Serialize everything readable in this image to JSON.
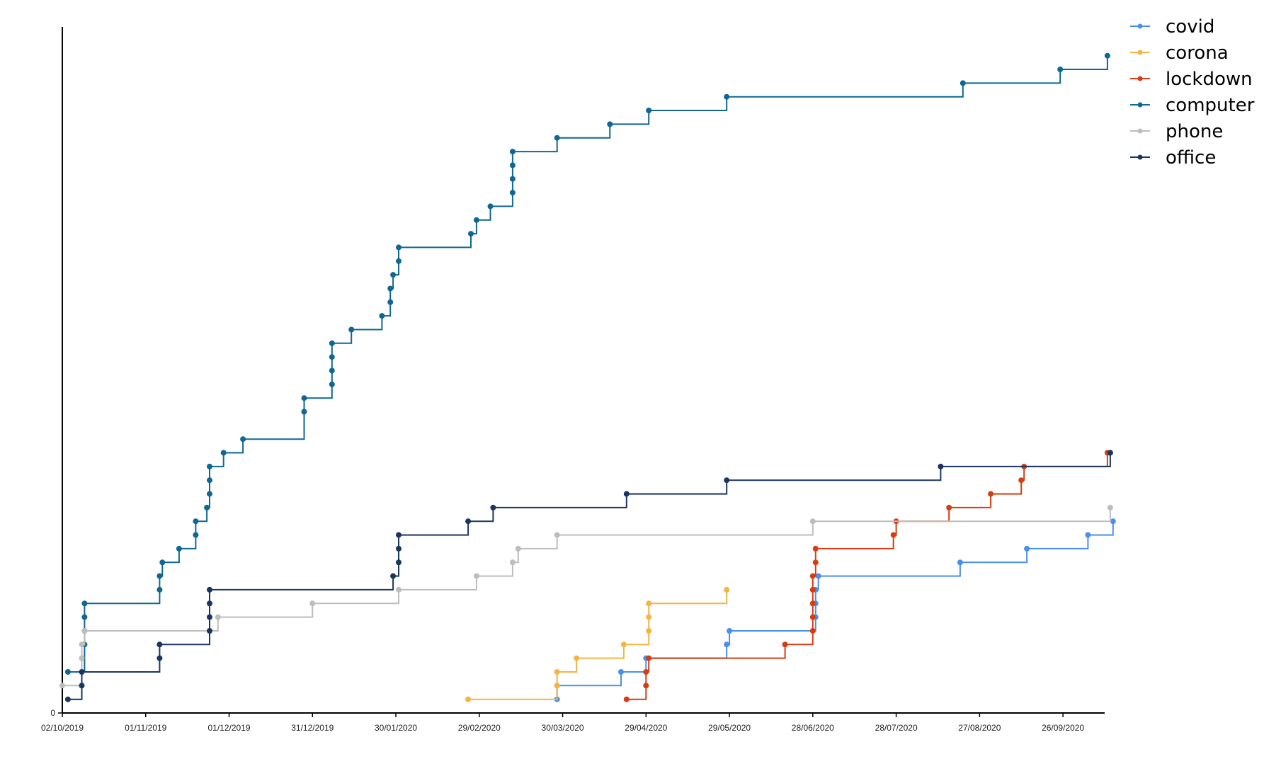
{
  "chart_data": {
    "type": "line",
    "step": true,
    "title": "",
    "xlabel": "",
    "ylabel": "",
    "x_axis": {
      "type": "date",
      "range": [
        "2019-10-02",
        "2020-10-11"
      ],
      "tick_dates": [
        "2019-10-02",
        "2019-11-01",
        "2019-12-01",
        "2019-12-31",
        "2020-01-30",
        "2020-02-29",
        "2020-03-30",
        "2020-04-29",
        "2020-05-29",
        "2020-06-28",
        "2020-07-28",
        "2020-08-27",
        "2020-09-26"
      ],
      "tick_labels": [
        "02/10/2019",
        "01/11/2019",
        "01/12/2019",
        "31/12/2019",
        "30/01/2020",
        "29/02/2020",
        "30/03/2020",
        "29/04/2020",
        "29/05/2020",
        "28/06/2020",
        "28/07/2020",
        "27/08/2020",
        "26/09/2020"
      ]
    },
    "y_axis": {
      "range": [
        0,
        50
      ],
      "tick_values": [
        0
      ],
      "tick_labels": [
        "0"
      ]
    },
    "grid": false,
    "legend_position": "top-right",
    "series": [
      {
        "name": "covid",
        "color": "#4a8ff0",
        "points": [
          [
            "2020-03-28",
            1
          ],
          [
            "2020-03-28",
            2
          ],
          [
            "2020-04-20",
            3
          ],
          [
            "2020-04-29",
            4
          ],
          [
            "2020-05-28",
            5
          ],
          [
            "2020-05-29",
            6
          ],
          [
            "2020-06-29",
            7
          ],
          [
            "2020-06-29",
            8
          ],
          [
            "2020-06-29",
            9
          ],
          [
            "2020-06-30",
            10
          ],
          [
            "2020-08-20",
            11
          ],
          [
            "2020-09-13",
            12
          ],
          [
            "2020-10-05",
            13
          ],
          [
            "2020-10-14",
            14
          ]
        ]
      },
      {
        "name": "corona",
        "color": "#f5b444",
        "points": [
          [
            "2020-02-25",
            1
          ],
          [
            "2020-03-28",
            2
          ],
          [
            "2020-03-28",
            3
          ],
          [
            "2020-04-04",
            4
          ],
          [
            "2020-04-21",
            5
          ],
          [
            "2020-04-30",
            6
          ],
          [
            "2020-04-30",
            7
          ],
          [
            "2020-04-30",
            8
          ],
          [
            "2020-05-28",
            9
          ]
        ]
      },
      {
        "name": "lockdown",
        "color": "#d53d12",
        "points": [
          [
            "2020-04-22",
            1
          ],
          [
            "2020-04-29",
            2
          ],
          [
            "2020-04-29",
            3
          ],
          [
            "2020-04-30",
            4
          ],
          [
            "2020-06-18",
            5
          ],
          [
            "2020-06-28",
            6
          ],
          [
            "2020-06-28",
            7
          ],
          [
            "2020-06-28",
            8
          ],
          [
            "2020-06-28",
            9
          ],
          [
            "2020-06-28",
            10
          ],
          [
            "2020-06-29",
            11
          ],
          [
            "2020-06-29",
            12
          ],
          [
            "2020-07-27",
            13
          ],
          [
            "2020-07-28",
            14
          ],
          [
            "2020-08-16",
            15
          ],
          [
            "2020-08-31",
            16
          ],
          [
            "2020-09-11",
            17
          ],
          [
            "2020-09-12",
            18
          ],
          [
            "2020-10-12",
            19
          ]
        ]
      },
      {
        "name": "computer",
        "color": "#0f6792",
        "points": [
          [
            "2019-10-04",
            3
          ],
          [
            "2019-10-10",
            5
          ],
          [
            "2019-10-10",
            6
          ],
          [
            "2019-10-10",
            7
          ],
          [
            "2019-10-10",
            8
          ],
          [
            "2019-11-06",
            9
          ],
          [
            "2019-11-06",
            10
          ],
          [
            "2019-11-07",
            11
          ],
          [
            "2019-11-13",
            12
          ],
          [
            "2019-11-19",
            13
          ],
          [
            "2019-11-19",
            14
          ],
          [
            "2019-11-23",
            15
          ],
          [
            "2019-11-24",
            16
          ],
          [
            "2019-11-24",
            17
          ],
          [
            "2019-11-24",
            18
          ],
          [
            "2019-11-29",
            19
          ],
          [
            "2019-12-06",
            20
          ],
          [
            "2019-12-28",
            22
          ],
          [
            "2019-12-28",
            23
          ],
          [
            "2020-01-07",
            24
          ],
          [
            "2020-01-07",
            25
          ],
          [
            "2020-01-07",
            26
          ],
          [
            "2020-01-07",
            27
          ],
          [
            "2020-01-14",
            28
          ],
          [
            "2020-01-25",
            29
          ],
          [
            "2020-01-28",
            30
          ],
          [
            "2020-01-28",
            31
          ],
          [
            "2020-01-29",
            32
          ],
          [
            "2020-01-31",
            33
          ],
          [
            "2020-01-31",
            34
          ],
          [
            "2020-02-26",
            35
          ],
          [
            "2020-02-28",
            36
          ],
          [
            "2020-03-04",
            37
          ],
          [
            "2020-03-12",
            38
          ],
          [
            "2020-03-12",
            39
          ],
          [
            "2020-03-12",
            40
          ],
          [
            "2020-03-12",
            41
          ],
          [
            "2020-03-28",
            42
          ],
          [
            "2020-04-16",
            43
          ],
          [
            "2020-04-30",
            44
          ],
          [
            "2020-05-28",
            45
          ],
          [
            "2020-08-21",
            46
          ],
          [
            "2020-09-25",
            47
          ],
          [
            "2020-10-12",
            48
          ]
        ]
      },
      {
        "name": "phone",
        "color": "#bdbdbd",
        "points": [
          [
            "2019-10-02",
            2
          ],
          [
            "2019-10-09",
            4
          ],
          [
            "2019-10-09",
            5
          ],
          [
            "2019-10-10",
            6
          ],
          [
            "2019-11-27",
            7
          ],
          [
            "2019-12-31",
            8
          ],
          [
            "2020-01-31",
            9
          ],
          [
            "2020-02-28",
            10
          ],
          [
            "2020-03-12",
            11
          ],
          [
            "2020-03-14",
            12
          ],
          [
            "2020-03-28",
            13
          ],
          [
            "2020-06-28",
            14
          ],
          [
            "2020-10-13",
            15
          ]
        ]
      },
      {
        "name": "office",
        "color": "#1a3560",
        "points": [
          [
            "2019-10-04",
            1
          ],
          [
            "2019-10-09",
            2
          ],
          [
            "2019-10-09",
            3
          ],
          [
            "2019-11-06",
            4
          ],
          [
            "2019-11-06",
            5
          ],
          [
            "2019-11-24",
            6
          ],
          [
            "2019-11-24",
            7
          ],
          [
            "2019-11-24",
            8
          ],
          [
            "2019-11-24",
            9
          ],
          [
            "2020-01-29",
            10
          ],
          [
            "2020-01-31",
            11
          ],
          [
            "2020-01-31",
            12
          ],
          [
            "2020-01-31",
            13
          ],
          [
            "2020-02-25",
            14
          ],
          [
            "2020-03-05",
            15
          ],
          [
            "2020-04-22",
            16
          ],
          [
            "2020-05-28",
            17
          ],
          [
            "2020-08-13",
            18
          ],
          [
            "2020-10-13",
            19
          ]
        ]
      }
    ]
  }
}
